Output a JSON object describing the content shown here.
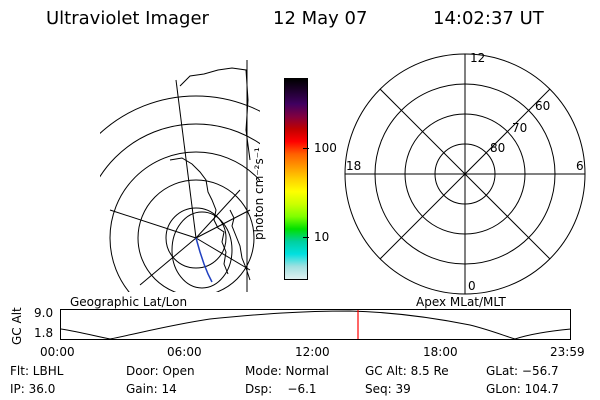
{
  "header": {
    "instrument": "Ultraviolet Imager",
    "date": "12 May 07",
    "time": "14:02:37 UT"
  },
  "colorbar": {
    "unit_label": "photon cm⁻²s⁻¹",
    "ticks": [
      "100",
      "10"
    ],
    "colors": [
      "#000000",
      "#200030",
      "#400060",
      "#800040",
      "#c00000",
      "#ff0000",
      "#ff6000",
      "#ff9800",
      "#ffd000",
      "#ffff00",
      "#ccff00",
      "#80ff00",
      "#00e000",
      "#00d0a0",
      "#00e0e0",
      "#a0e0e0",
      "#e0f0f0"
    ]
  },
  "polar_plot": {
    "mlt_labels": {
      "top": "12",
      "left": "18",
      "right": "6",
      "bottom": "0"
    },
    "lat_labels": [
      "60",
      "70",
      "80"
    ]
  },
  "strip": {
    "left_title": "Geographic Lat/Lon",
    "right_title": "Apex MLat/MLT",
    "ylabel": "GC Alt",
    "yticks": [
      "9.0",
      "1.8"
    ],
    "xticks": [
      "00:00",
      "06:00",
      "12:00",
      "18:00",
      "23:59"
    ],
    "current_marker_color": "#ff0000"
  },
  "footer": {
    "row1": [
      "Flt: LBHL",
      "Door: Open",
      "Mode: Normal",
      "GC Alt: 8.5 Re",
      "GLat: −56.7"
    ],
    "row2": [
      "IP: 36.0",
      "Gain: 14",
      "Dsp:    −6.1",
      "Seq: 39",
      "GLon: 104.7"
    ]
  }
}
